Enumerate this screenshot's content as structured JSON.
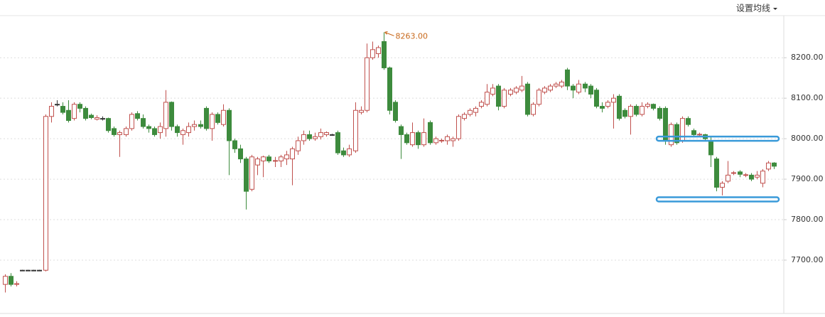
{
  "chart_data": {
    "type": "candlestick",
    "button": "设置均线",
    "ylim": [
      7570,
      8304
    ],
    "yticks": [
      {
        "value": 7700,
        "label": "7700.00"
      },
      {
        "value": 7800,
        "label": "7800.00"
      },
      {
        "value": 7900,
        "label": "7900.00"
      },
      {
        "value": 8000,
        "label": "8000.00"
      },
      {
        "value": 8100,
        "label": "8100.00"
      },
      {
        "value": 8200,
        "label": "8200.00"
      }
    ],
    "grid": true,
    "up_color": "#c0504d",
    "down_color": "#3d8b3d",
    "flat_color": "#333333",
    "max_annotation": {
      "value": 8263,
      "label": "8263.00",
      "color": "#c8691c"
    },
    "horizontal_lines": [
      8000,
      7850
    ],
    "horizontal_line_color": "#3a9ad9",
    "ohlc": [
      [
        7640,
        7665,
        7620,
        7660
      ],
      [
        7660,
        7668,
        7635,
        7640
      ],
      [
        7640,
        7648,
        7635,
        7642
      ],
      [
        7675,
        7676,
        7674,
        7675
      ],
      [
        7675,
        7676,
        7674,
        7675
      ],
      [
        7675,
        7676,
        7674,
        7675
      ],
      [
        7675,
        7676,
        7674,
        7675
      ],
      [
        7675,
        8060,
        7672,
        8055
      ],
      [
        8055,
        8090,
        8040,
        8080
      ],
      [
        8085,
        8095,
        8080,
        8085
      ],
      [
        8080,
        8090,
        8060,
        8065
      ],
      [
        8070,
        8095,
        8040,
        8045
      ],
      [
        8050,
        8090,
        8045,
        8085
      ],
      [
        8085,
        8090,
        8065,
        8075
      ],
      [
        8075,
        8080,
        8045,
        8050
      ],
      [
        8058,
        8062,
        8048,
        8052
      ],
      [
        8048,
        8058,
        8045,
        8052
      ],
      [
        8050,
        8055,
        8045,
        8050
      ],
      [
        8050,
        8052,
        8015,
        8020
      ],
      [
        8025,
        8030,
        8005,
        8010
      ],
      [
        8010,
        8020,
        7955,
        8015
      ],
      [
        8010,
        8030,
        8005,
        8025
      ],
      [
        8025,
        8065,
        8020,
        8060
      ],
      [
        8062,
        8068,
        8045,
        8050
      ],
      [
        8050,
        8060,
        8025,
        8030
      ],
      [
        8030,
        8035,
        8015,
        8025
      ],
      [
        8025,
        8030,
        8005,
        8010
      ],
      [
        8015,
        8040,
        8000,
        8030
      ],
      [
        8025,
        8120,
        8005,
        8090
      ],
      [
        8090,
        8092,
        8020,
        8030
      ],
      [
        8030,
        8035,
        8005,
        8015
      ],
      [
        8010,
        8025,
        7985,
        8020
      ],
      [
        8015,
        8040,
        8005,
        8030
      ],
      [
        8030,
        8045,
        8020,
        8035
      ],
      [
        8035,
        8045,
        8025,
        8030
      ],
      [
        8075,
        8080,
        8020,
        8025
      ],
      [
        8025,
        8065,
        7995,
        8060
      ],
      [
        8060,
        8065,
        8035,
        8040
      ],
      [
        8035,
        8085,
        8030,
        8070
      ],
      [
        8070,
        8075,
        7910,
        7995
      ],
      [
        7995,
        8000,
        7965,
        7975
      ],
      [
        7975,
        7985,
        7940,
        7950
      ],
      [
        7950,
        7955,
        7825,
        7870
      ],
      [
        7875,
        7960,
        7870,
        7955
      ],
      [
        7935,
        7955,
        7910,
        7950
      ],
      [
        7945,
        7958,
        7905,
        7955
      ],
      [
        7955,
        7960,
        7940,
        7945
      ],
      [
        7945,
        7955,
        7930,
        7946
      ],
      [
        7945,
        7960,
        7930,
        7955
      ],
      [
        7950,
        7970,
        7935,
        7960
      ],
      [
        7950,
        7980,
        7885,
        7975
      ],
      [
        7970,
        8005,
        7960,
        7995
      ],
      [
        7995,
        8020,
        7985,
        8010
      ],
      [
        8010,
        8020,
        7995,
        8000
      ],
      [
        8000,
        8015,
        7995,
        8005
      ],
      [
        8005,
        8025,
        7998,
        8015
      ],
      [
        8010,
        8018,
        8005,
        8015
      ],
      [
        8010,
        8012,
        8007,
        8010
      ],
      [
        8015,
        8020,
        7960,
        7965
      ],
      [
        7970,
        7978,
        7955,
        7960
      ],
      [
        7960,
        7985,
        7955,
        7975
      ],
      [
        7970,
        8090,
        7965,
        8070
      ],
      [
        8065,
        8080,
        8060,
        8070
      ],
      [
        8070,
        8235,
        8065,
        8200
      ],
      [
        8200,
        8240,
        8195,
        8220
      ],
      [
        8210,
        8230,
        8200,
        8225
      ],
      [
        8240,
        8263,
        8170,
        8175
      ],
      [
        8175,
        8178,
        8060,
        8070
      ],
      [
        8090,
        8095,
        8040,
        8045
      ],
      [
        8030,
        8035,
        7950,
        8010
      ],
      [
        8010,
        8015,
        7985,
        7990
      ],
      [
        7985,
        8040,
        7980,
        8015
      ],
      [
        8015,
        8020,
        7975,
        7985
      ],
      [
        7985,
        8050,
        7980,
        8015
      ],
      [
        8040,
        8045,
        7985,
        7990
      ],
      [
        7990,
        8005,
        7985,
        8000
      ],
      [
        7995,
        8000,
        7990,
        7996
      ],
      [
        7995,
        8010,
        7985,
        8005
      ],
      [
        7995,
        8005,
        7980,
        8000
      ],
      [
        8000,
        8060,
        7995,
        8055
      ],
      [
        8050,
        8065,
        8045,
        8060
      ],
      [
        8060,
        8075,
        8055,
        8070
      ],
      [
        8065,
        8080,
        8055,
        8075
      ],
      [
        8080,
        8095,
        8075,
        8090
      ],
      [
        8085,
        8135,
        8080,
        8115
      ],
      [
        8110,
        8135,
        8105,
        8125
      ],
      [
        8130,
        8135,
        8070,
        8080
      ],
      [
        8080,
        8125,
        8075,
        8120
      ],
      [
        8110,
        8125,
        8105,
        8120
      ],
      [
        8115,
        8130,
        8110,
        8125
      ],
      [
        8120,
        8155,
        8115,
        8130
      ],
      [
        8135,
        8140,
        8055,
        8060
      ],
      [
        8060,
        8090,
        8055,
        8085
      ],
      [
        8085,
        8125,
        8080,
        8120
      ],
      [
        8115,
        8130,
        8110,
        8125
      ],
      [
        8120,
        8135,
        8115,
        8130
      ],
      [
        8130,
        8140,
        8125,
        8135
      ],
      [
        8130,
        8145,
        8125,
        8140
      ],
      [
        8170,
        8175,
        8120,
        8130
      ],
      [
        8130,
        8135,
        8100,
        8120
      ],
      [
        8115,
        8145,
        8110,
        8135
      ],
      [
        8135,
        8140,
        8115,
        8125
      ],
      [
        8130,
        8135,
        8100,
        8110
      ],
      [
        8120,
        8125,
        8075,
        8080
      ],
      [
        8080,
        8090,
        8065,
        8075
      ],
      [
        8080,
        8095,
        8075,
        8090
      ],
      [
        8090,
        8110,
        8025,
        8100
      ],
      [
        8105,
        8110,
        8045,
        8050
      ],
      [
        8070,
        8075,
        8050,
        8055
      ],
      [
        8055,
        8085,
        8010,
        8080
      ],
      [
        8080,
        8085,
        8055,
        8060
      ],
      [
        8060,
        8090,
        8055,
        8080
      ],
      [
        8080,
        8090,
        8075,
        8085
      ],
      [
        8085,
        8087,
        8070,
        8075
      ],
      [
        8075,
        8080,
        8045,
        8050
      ],
      [
        8075,
        8080,
        7985,
        7995
      ],
      [
        7985,
        8040,
        7980,
        8035
      ],
      [
        8035,
        8040,
        7985,
        7990
      ],
      [
        7995,
        8055,
        7990,
        8050
      ],
      [
        8050,
        8055,
        8030,
        8035
      ],
      [
        8020,
        8025,
        8005,
        8010
      ],
      [
        8010,
        8015,
        8005,
        8011
      ],
      [
        8010,
        8012,
        7995,
        8000
      ],
      [
        7995,
        8005,
        7930,
        7960
      ],
      [
        7950,
        7955,
        7870,
        7880
      ],
      [
        7880,
        7895,
        7860,
        7890
      ],
      [
        7895,
        7945,
        7890,
        7910
      ],
      [
        7915,
        7920,
        7910,
        7916
      ],
      [
        7918,
        7922,
        7905,
        7912
      ],
      [
        7910,
        7915,
        7905,
        7911
      ],
      [
        7910,
        7915,
        7895,
        7900
      ],
      [
        7905,
        7920,
        7900,
        7910
      ],
      [
        7890,
        7925,
        7880,
        7920
      ],
      [
        7925,
        7945,
        7920,
        7940
      ],
      [
        7940,
        7942,
        7925,
        7932
      ]
    ]
  }
}
